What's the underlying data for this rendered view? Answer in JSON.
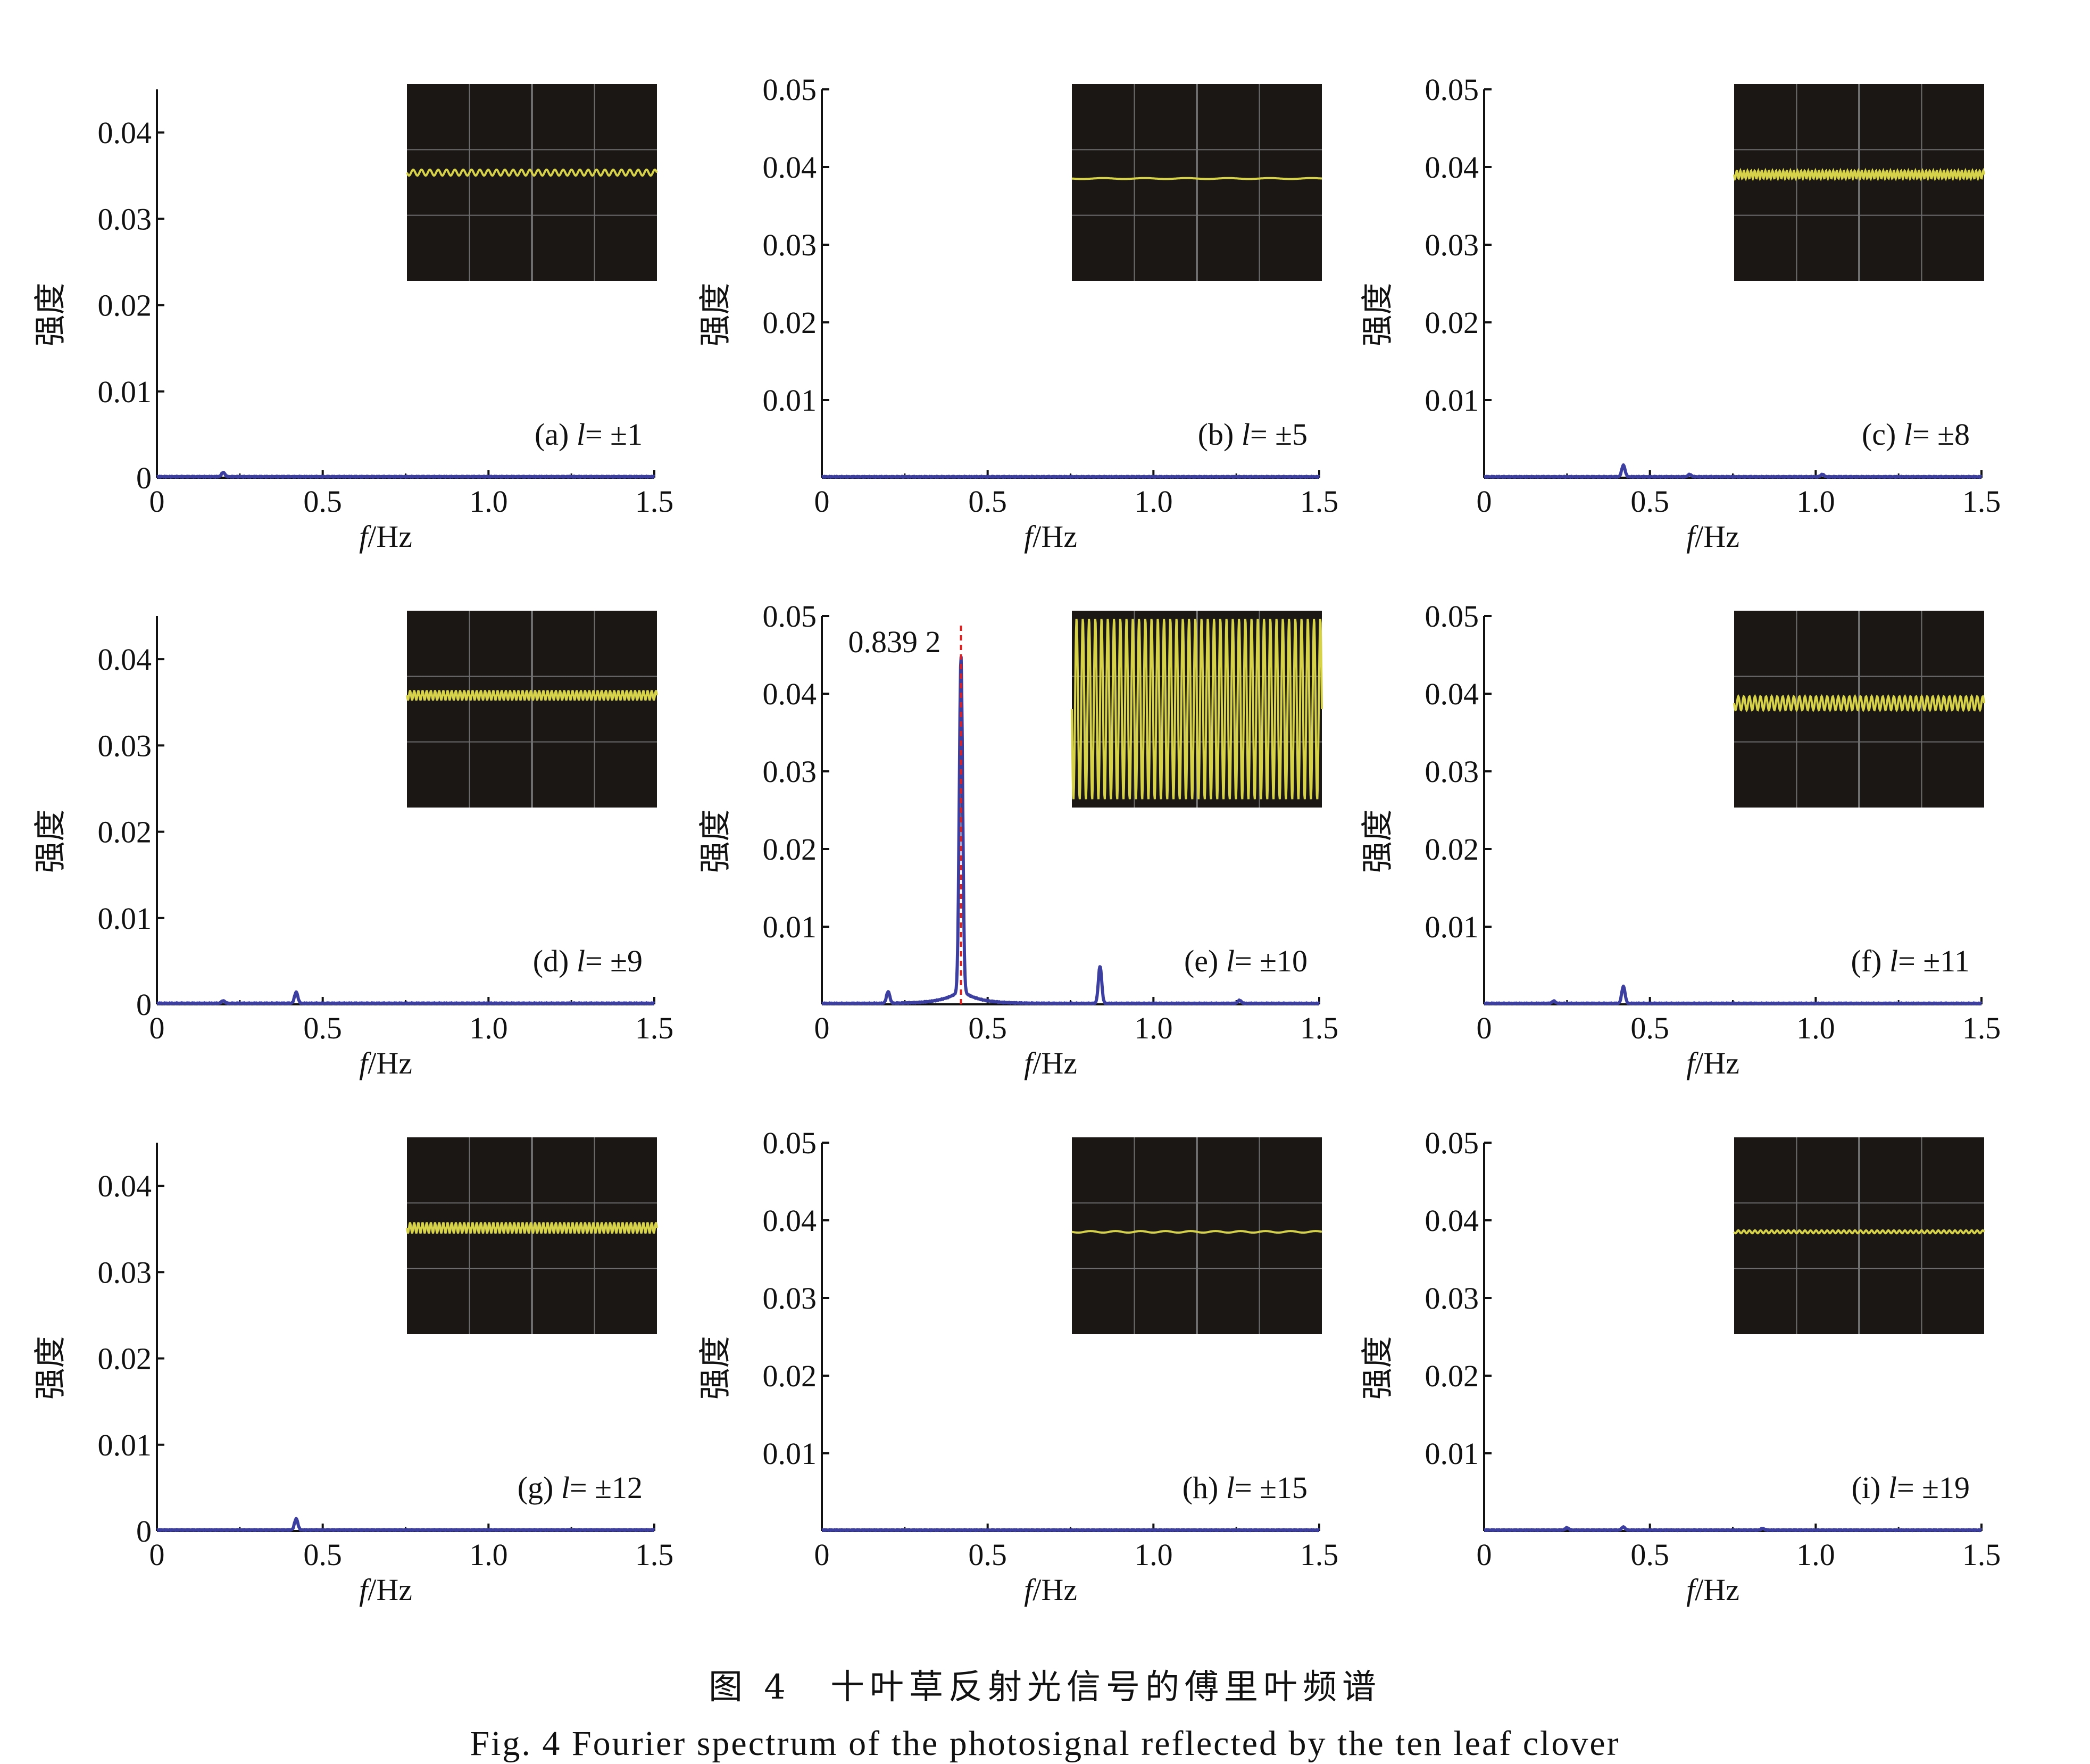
{
  "colors": {
    "spectrum": "#3c3fa0",
    "peak_marker": "#e02020",
    "inset_bg": "#1a1714",
    "inset_grid": "#6e6e6e",
    "inset_signal": "#d6d24a",
    "axis": "#111111"
  },
  "axis_common": {
    "xlabel_italic": "f",
    "xlabel_rest": "/Hz",
    "ylabel": "强度",
    "xlim": [
      0,
      1.5
    ],
    "xticks": [
      0,
      0.5,
      1.0,
      1.5
    ],
    "xtick_labels": [
      "0",
      "0.5",
      "1.0",
      "1.5"
    ]
  },
  "chart_data": [
    {
      "id": "a",
      "type": "line",
      "label_prefix": "(a) ",
      "label_var": "l",
      "label_suffix": "= ±1",
      "ylim": [
        0,
        0.045
      ],
      "yticks": [
        0,
        0.01,
        0.02,
        0.03,
        0.04
      ],
      "ytick_labels": [
        "0",
        "0.01",
        "0.02",
        "0.03",
        "0.04"
      ],
      "peaks": [
        [
          0.2,
          0.0005
        ]
      ],
      "inset": {
        "level": 0.45,
        "amplitude": 0.03,
        "cycles": 30
      }
    },
    {
      "id": "b",
      "type": "line",
      "label_prefix": "(b) ",
      "label_var": "l",
      "label_suffix": "= ±5",
      "ylim": [
        0,
        0.05
      ],
      "yticks": [
        0.01,
        0.02,
        0.03,
        0.04,
        0.05
      ],
      "ytick_labels": [
        "0.01",
        "0.02",
        "0.03",
        "0.04",
        "0.05"
      ],
      "peaks": [],
      "inset": {
        "level": 0.48,
        "amplitude": 0.005,
        "cycles": 6
      }
    },
    {
      "id": "c",
      "type": "line",
      "label_prefix": "(c) ",
      "label_var": "l",
      "label_suffix": "= ±8",
      "ylim": [
        0,
        0.05
      ],
      "yticks": [
        0.01,
        0.02,
        0.03,
        0.04,
        0.05
      ],
      "ytick_labels": [
        "0.01",
        "0.02",
        "0.03",
        "0.04",
        "0.05"
      ],
      "peaks": [
        [
          0.42,
          0.0015
        ],
        [
          0.62,
          0.0003
        ],
        [
          1.02,
          0.0003
        ]
      ],
      "inset": {
        "level": 0.46,
        "amplitude": 0.04,
        "cycles": 70
      }
    },
    {
      "id": "d",
      "type": "line",
      "label_prefix": "(d) ",
      "label_var": "l",
      "label_suffix": "= ±9",
      "ylim": [
        0,
        0.045
      ],
      "yticks": [
        0,
        0.01,
        0.02,
        0.03,
        0.04
      ],
      "ytick_labels": [
        "0",
        "0.01",
        "0.02",
        "0.03",
        "0.04"
      ],
      "peaks": [
        [
          0.2,
          0.0003
        ],
        [
          0.42,
          0.0013
        ]
      ],
      "inset": {
        "level": 0.43,
        "amplitude": 0.045,
        "cycles": 60
      }
    },
    {
      "id": "e",
      "type": "line",
      "label_prefix": "(e) ",
      "label_var": "l",
      "label_suffix": "= ±10",
      "ylim": [
        0,
        0.05
      ],
      "yticks": [
        0.01,
        0.02,
        0.03,
        0.04,
        0.05
      ],
      "ytick_labels": [
        "0.01",
        "0.02",
        "0.03",
        "0.04",
        "0.05"
      ],
      "peaks": [
        [
          0.2,
          0.0015
        ],
        [
          0.4196,
          0.043
        ],
        [
          0.839,
          0.0048
        ],
        [
          1.26,
          0.0004
        ]
      ],
      "peak_annotation": {
        "text": "0.839 2",
        "x": 0.4196
      },
      "inset": {
        "level": 0.5,
        "amplitude": 0.92,
        "cycles": 40
      }
    },
    {
      "id": "f",
      "type": "line",
      "label_prefix": "(f) ",
      "label_var": "l",
      "label_suffix": "= ±11",
      "ylim": [
        0,
        0.05
      ],
      "yticks": [
        0.01,
        0.02,
        0.03,
        0.04,
        0.05
      ],
      "ytick_labels": [
        "0.01",
        "0.02",
        "0.03",
        "0.04",
        "0.05"
      ],
      "peaks": [
        [
          0.21,
          0.0003
        ],
        [
          0.42,
          0.0022
        ]
      ],
      "inset": {
        "level": 0.47,
        "amplitude": 0.07,
        "cycles": 45
      }
    },
    {
      "id": "g",
      "type": "line",
      "label_prefix": "(g) ",
      "label_var": "l",
      "label_suffix": "= ±12",
      "ylim": [
        0,
        0.045
      ],
      "yticks": [
        0,
        0.01,
        0.02,
        0.03,
        0.04
      ],
      "ytick_labels": [
        "0",
        "0.01",
        "0.02",
        "0.03",
        "0.04"
      ],
      "peaks": [
        [
          0.42,
          0.0013
        ]
      ],
      "inset": {
        "level": 0.46,
        "amplitude": 0.05,
        "cycles": 60
      }
    },
    {
      "id": "h",
      "type": "line",
      "label_prefix": "(h) ",
      "label_var": "l",
      "label_suffix": "= ±15",
      "ylim": [
        0,
        0.05
      ],
      "yticks": [
        0.01,
        0.02,
        0.03,
        0.04,
        0.05
      ],
      "ytick_labels": [
        "0.01",
        "0.02",
        "0.03",
        "0.04",
        "0.05"
      ],
      "peaks": [],
      "inset": {
        "level": 0.48,
        "amplitude": 0.008,
        "cycles": 10
      }
    },
    {
      "id": "i",
      "type": "line",
      "label_prefix": "(i) ",
      "label_var": "l",
      "label_suffix": "= ±19",
      "ylim": [
        0,
        0.05
      ],
      "yticks": [
        0.01,
        0.02,
        0.03,
        0.04,
        0.05
      ],
      "ytick_labels": [
        "0.01",
        "0.02",
        "0.03",
        "0.04",
        "0.05"
      ],
      "peaks": [
        [
          0.25,
          0.0003
        ],
        [
          0.42,
          0.0004
        ],
        [
          0.84,
          0.0002
        ]
      ],
      "inset": {
        "level": 0.48,
        "amplitude": 0.015,
        "cycles": 45
      }
    }
  ],
  "caption": {
    "cn": "图 4　十叶草反射光信号的傅里叶频谱",
    "en": "Fig. 4  Fourier spectrum of the photosignal reflected by the ten leaf clover"
  }
}
